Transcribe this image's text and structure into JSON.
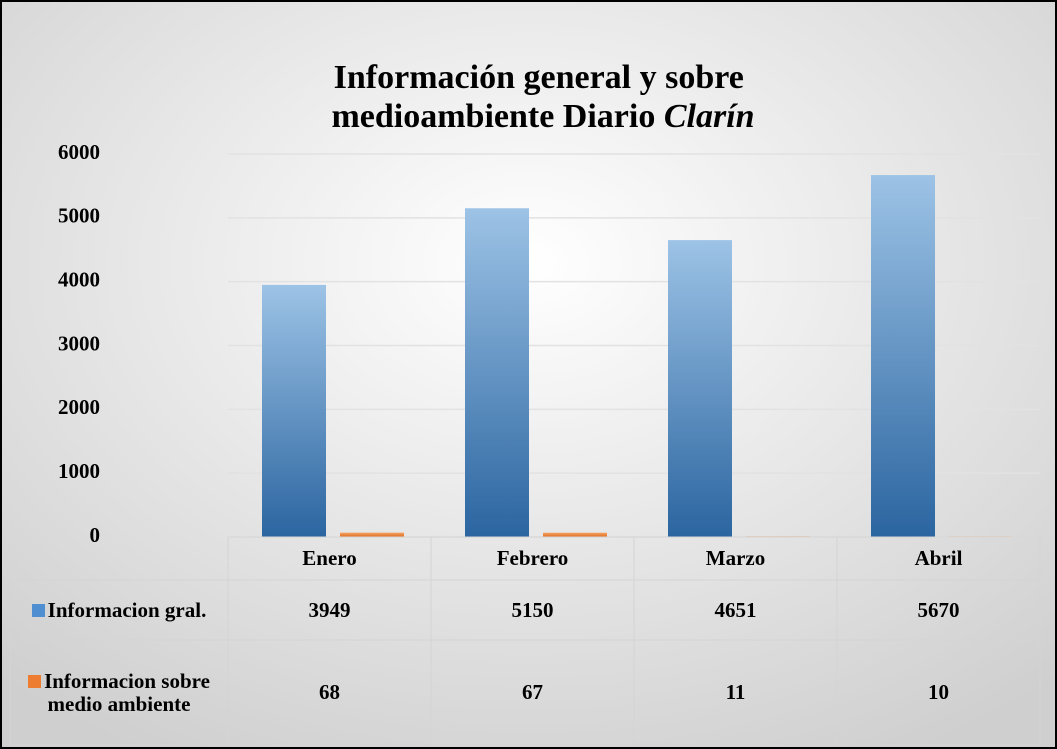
{
  "chart_data": {
    "type": "bar",
    "title_parts": [
      "Información general y sobre",
      "medioambiente Diario",
      "Clarín"
    ],
    "categories": [
      "Enero",
      "Febrero",
      "Marzo",
      "Abril"
    ],
    "series": [
      {
        "name": "Informacion gral.",
        "color": "#4f8ed0",
        "values": [
          3949,
          5150,
          4651,
          5670
        ]
      },
      {
        "name": "Informacion sobre medio ambiente",
        "color": "#ed7d31",
        "values": [
          68,
          67,
          11,
          10
        ]
      }
    ],
    "ylim": [
      0,
      6000
    ],
    "yticks": [
      0,
      1000,
      2000,
      3000,
      4000,
      5000,
      6000
    ],
    "grid": true,
    "data_table": true
  }
}
